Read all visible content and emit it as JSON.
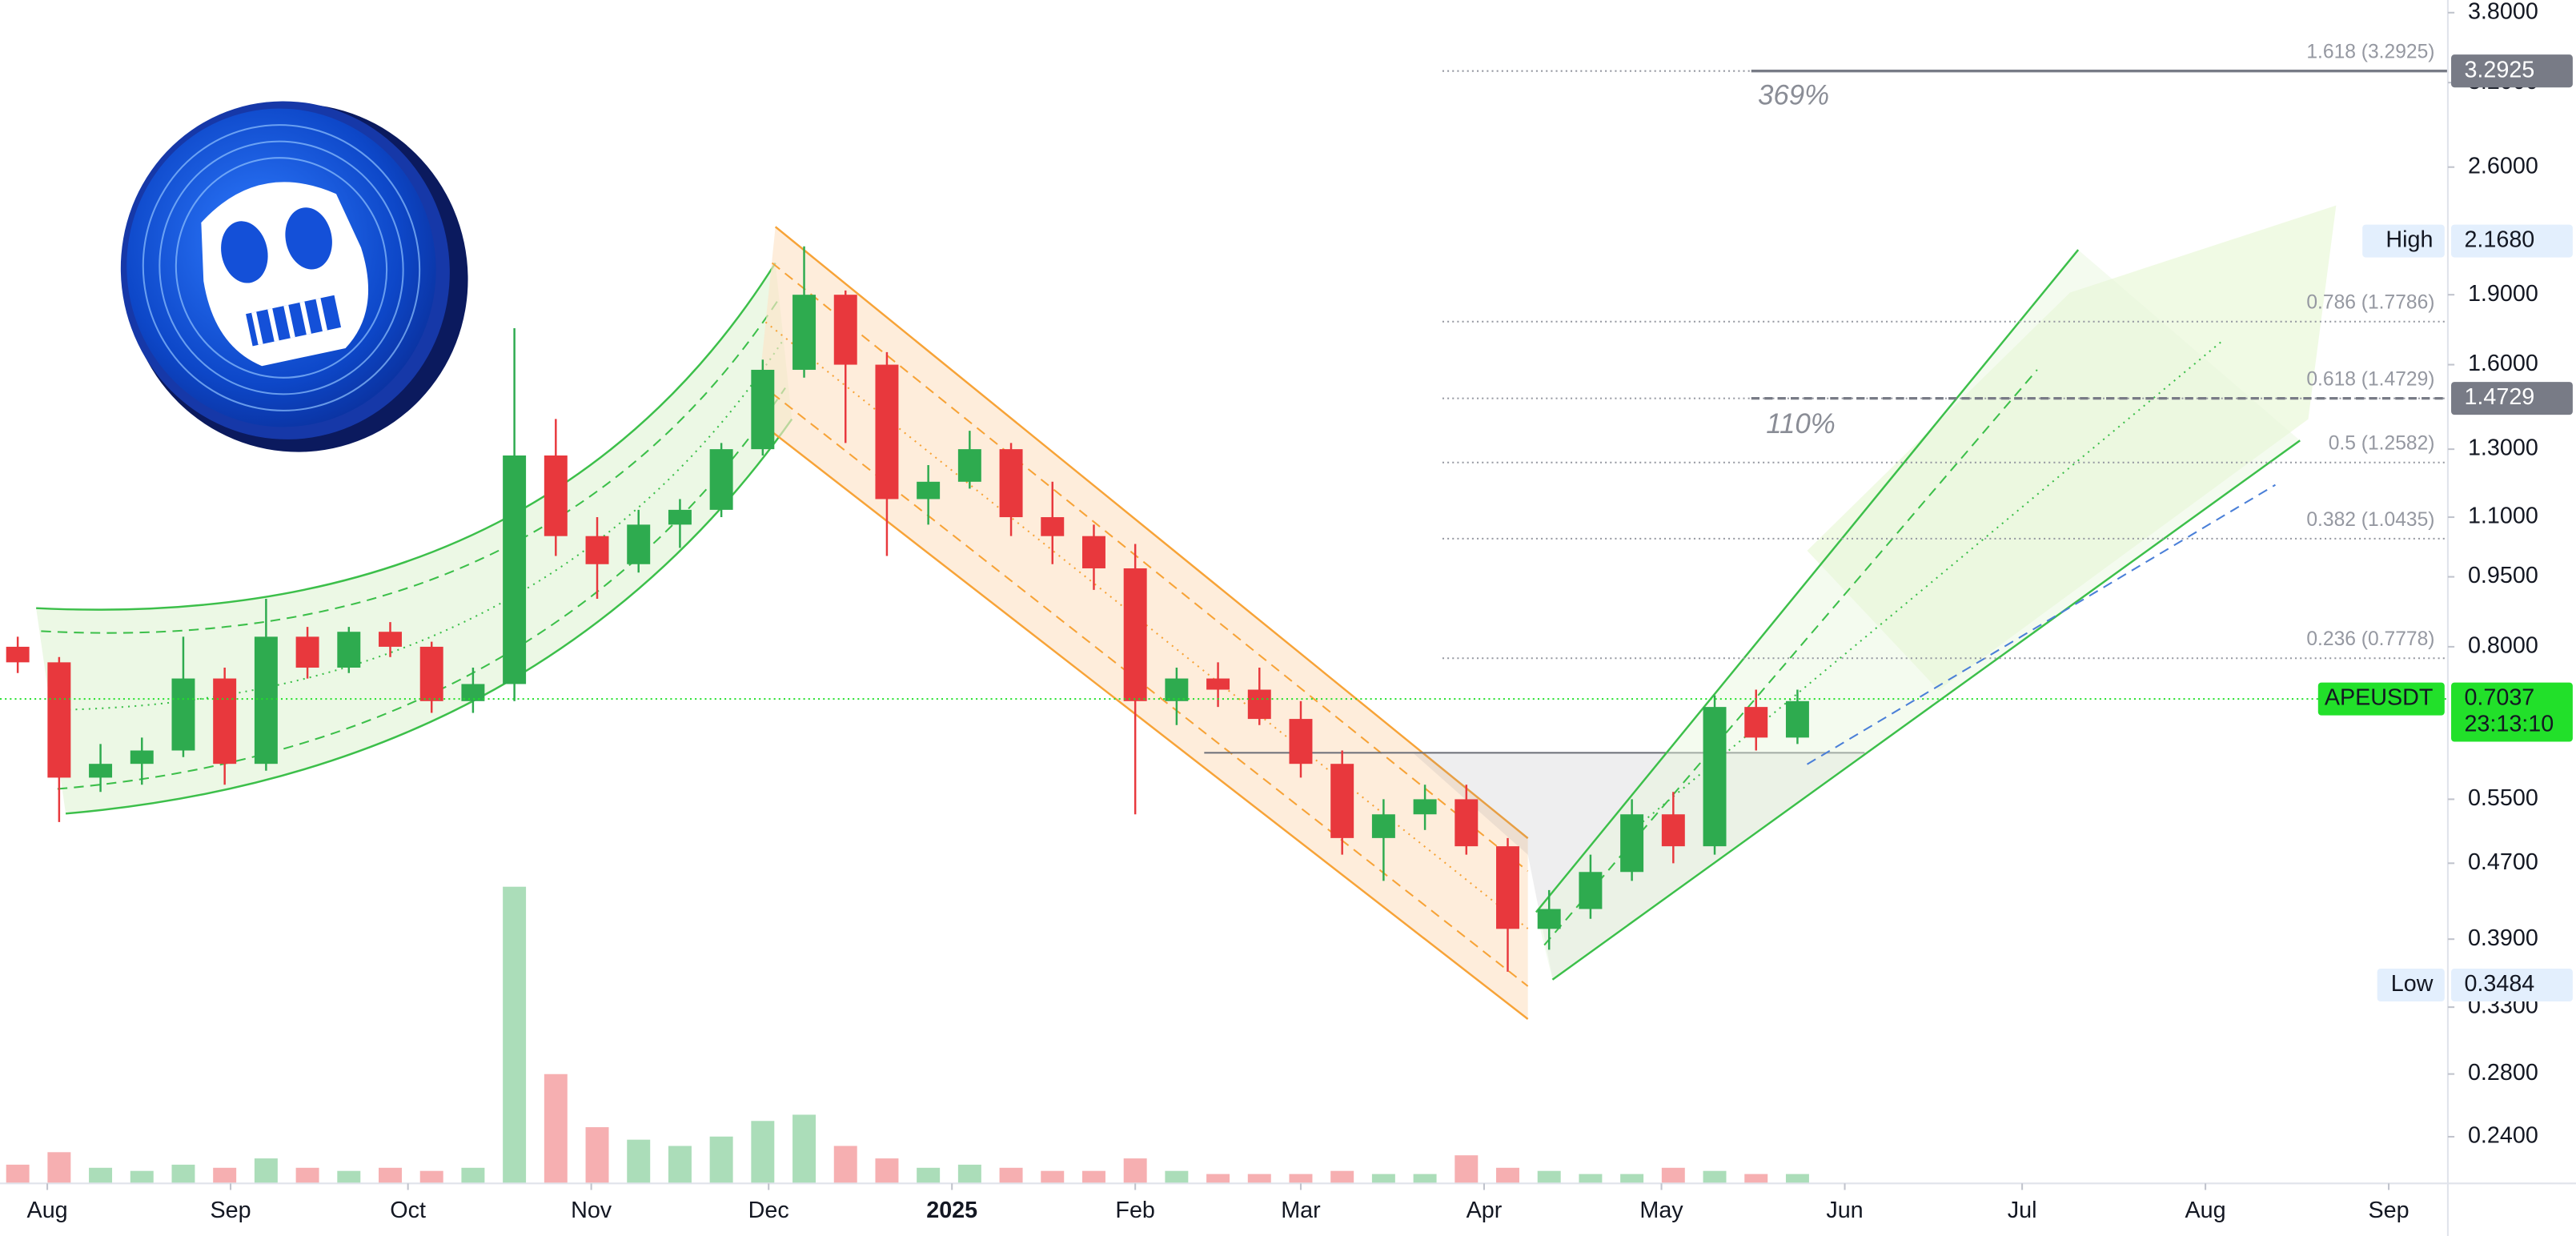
{
  "chart_data": {
    "type": "candlestick",
    "log_scale": true,
    "grid": false,
    "up_color": "#2eab4f",
    "down_color": "#e8383d",
    "xlim": [
      0,
      414
    ],
    "ylim": [
      0.214,
      3.92
    ],
    "xticks": [
      {
        "value": 8,
        "label": "Aug"
      },
      {
        "value": 39,
        "label": "Sep"
      },
      {
        "value": 69,
        "label": "Oct"
      },
      {
        "value": 100,
        "label": "Nov"
      },
      {
        "value": 130,
        "label": "Dec"
      },
      {
        "value": 161,
        "label": "2025",
        "bold": true
      },
      {
        "value": 192,
        "label": "Feb"
      },
      {
        "value": 220,
        "label": "Mar"
      },
      {
        "value": 251,
        "label": "Apr"
      },
      {
        "value": 281,
        "label": "May"
      },
      {
        "value": 312,
        "label": "Jun"
      },
      {
        "value": 342,
        "label": "Jul"
      },
      {
        "value": 373,
        "label": "Aug"
      },
      {
        "value": 404,
        "label": "Sep"
      }
    ],
    "yticks": [
      {
        "value": 3.8,
        "label": "3.8000"
      },
      {
        "value": 3.2,
        "label": "3.2000"
      },
      {
        "value": 2.6,
        "label": "2.6000"
      },
      {
        "value": 1.9,
        "label": "1.9000"
      },
      {
        "value": 1.6,
        "label": "1.6000"
      },
      {
        "value": 1.3,
        "label": "1.3000"
      },
      {
        "value": 1.1,
        "label": "1.1000"
      },
      {
        "value": 0.95,
        "label": "0.9500"
      },
      {
        "value": 0.8,
        "label": "0.8000"
      },
      {
        "value": 0.55,
        "label": "0.5500"
      },
      {
        "value": 0.47,
        "label": "0.4700"
      },
      {
        "value": 0.39,
        "label": "0.3900"
      },
      {
        "value": 0.33,
        "label": "0.3300"
      },
      {
        "value": 0.28,
        "label": "0.2800"
      },
      {
        "value": 0.24,
        "label": "0.2400"
      }
    ],
    "x": [
      3,
      10,
      17,
      24,
      31,
      38,
      45,
      52,
      59,
      66,
      73,
      80,
      87,
      94,
      101,
      108,
      115,
      122,
      129,
      136,
      143,
      150,
      157,
      164,
      171,
      178,
      185,
      192,
      199,
      206,
      213,
      220,
      227,
      234,
      241,
      248,
      255,
      262,
      269,
      276,
      283,
      290,
      297,
      304
    ],
    "open": [
      0.8,
      0.77,
      0.58,
      0.6,
      0.62,
      0.74,
      0.6,
      0.82,
      0.76,
      0.83,
      0.8,
      0.7,
      0.73,
      1.28,
      1.05,
      0.98,
      1.08,
      1.12,
      1.3,
      1.58,
      1.9,
      1.6,
      1.15,
      1.2,
      1.3,
      1.1,
      1.05,
      0.97,
      0.7,
      0.74,
      0.72,
      0.67,
      0.6,
      0.5,
      0.53,
      0.55,
      0.49,
      0.4,
      0.42,
      0.46,
      0.53,
      0.49,
      0.69,
      0.64
    ],
    "high": [
      0.82,
      0.78,
      0.63,
      0.64,
      0.82,
      0.76,
      0.9,
      0.84,
      0.84,
      0.85,
      0.81,
      0.76,
      1.75,
      1.4,
      1.1,
      1.12,
      1.15,
      1.32,
      1.62,
      2.14,
      1.92,
      1.65,
      1.25,
      1.36,
      1.32,
      1.2,
      1.08,
      1.03,
      0.76,
      0.77,
      0.76,
      0.7,
      0.62,
      0.55,
      0.57,
      0.57,
      0.5,
      0.44,
      0.48,
      0.55,
      0.56,
      0.71,
      0.72,
      0.72
    ],
    "low": [
      0.75,
      0.52,
      0.56,
      0.57,
      0.61,
      0.57,
      0.59,
      0.74,
      0.75,
      0.78,
      0.68,
      0.68,
      0.7,
      1.0,
      0.9,
      0.96,
      1.02,
      1.1,
      1.28,
      1.55,
      1.32,
      1.0,
      1.08,
      1.18,
      1.05,
      0.98,
      0.92,
      0.53,
      0.66,
      0.69,
      0.66,
      0.58,
      0.48,
      0.45,
      0.51,
      0.48,
      0.36,
      0.38,
      0.41,
      0.45,
      0.47,
      0.48,
      0.62,
      0.63
    ],
    "close": [
      0.77,
      0.58,
      0.6,
      0.62,
      0.74,
      0.6,
      0.82,
      0.76,
      0.83,
      0.8,
      0.7,
      0.73,
      1.28,
      1.05,
      0.98,
      1.08,
      1.12,
      1.3,
      1.58,
      1.9,
      1.6,
      1.15,
      1.2,
      1.3,
      1.1,
      1.05,
      0.97,
      0.7,
      0.74,
      0.72,
      0.67,
      0.6,
      0.5,
      0.53,
      0.55,
      0.49,
      0.4,
      0.42,
      0.46,
      0.53,
      0.49,
      0.69,
      0.64,
      0.7
    ],
    "volume": [
      6,
      10,
      5,
      4,
      6,
      5,
      8,
      5,
      4,
      5,
      4,
      5,
      95,
      35,
      18,
      14,
      12,
      15,
      20,
      22,
      12,
      8,
      5,
      6,
      5,
      4,
      4,
      8,
      4,
      3,
      3,
      3,
      4,
      3,
      3,
      9,
      5,
      4,
      3,
      3,
      5,
      4,
      3,
      3
    ],
    "volume_lim": [
      0,
      100
    ],
    "fib_color": "#9598a1",
    "fib_levels": [
      {
        "value": 3.2925,
        "label": "1.618 (3.2925)"
      },
      {
        "value": 1.7786,
        "label": "0.786 (1.7786)"
      },
      {
        "value": 1.4729,
        "label": "0.618 (1.4729)"
      },
      {
        "value": 1.2582,
        "label": "0.5 (1.2582)"
      },
      {
        "value": 1.0435,
        "label": "0.382 (1.0435)"
      },
      {
        "value": 0.7778,
        "label": "0.236 (0.7778)"
      }
    ],
    "price_tags": [
      {
        "value": 3.2925,
        "label": "3.2925",
        "color": "#787b86",
        "text_color": "#ffffff",
        "line": "solid"
      },
      {
        "name": "High",
        "value": 2.168,
        "label": "2.1680",
        "color": "#e3effd",
        "text_color": "#131722"
      },
      {
        "value": 1.4729,
        "label": "1.4729",
        "color": "#787b86",
        "text_color": "#ffffff",
        "line": "dashed"
      },
      {
        "name": "APEUSDT",
        "value": 0.7037,
        "label": "0.7037",
        "countdown": "23:13:10",
        "color": "#22e02a",
        "text_color": "#131722",
        "line": "dotted"
      },
      {
        "name": "Low",
        "value": 0.3484,
        "label": "0.3484",
        "color": "#e3effd",
        "text_color": "#131722"
      }
    ],
    "annotations": [
      "369%",
      "110%"
    ]
  }
}
